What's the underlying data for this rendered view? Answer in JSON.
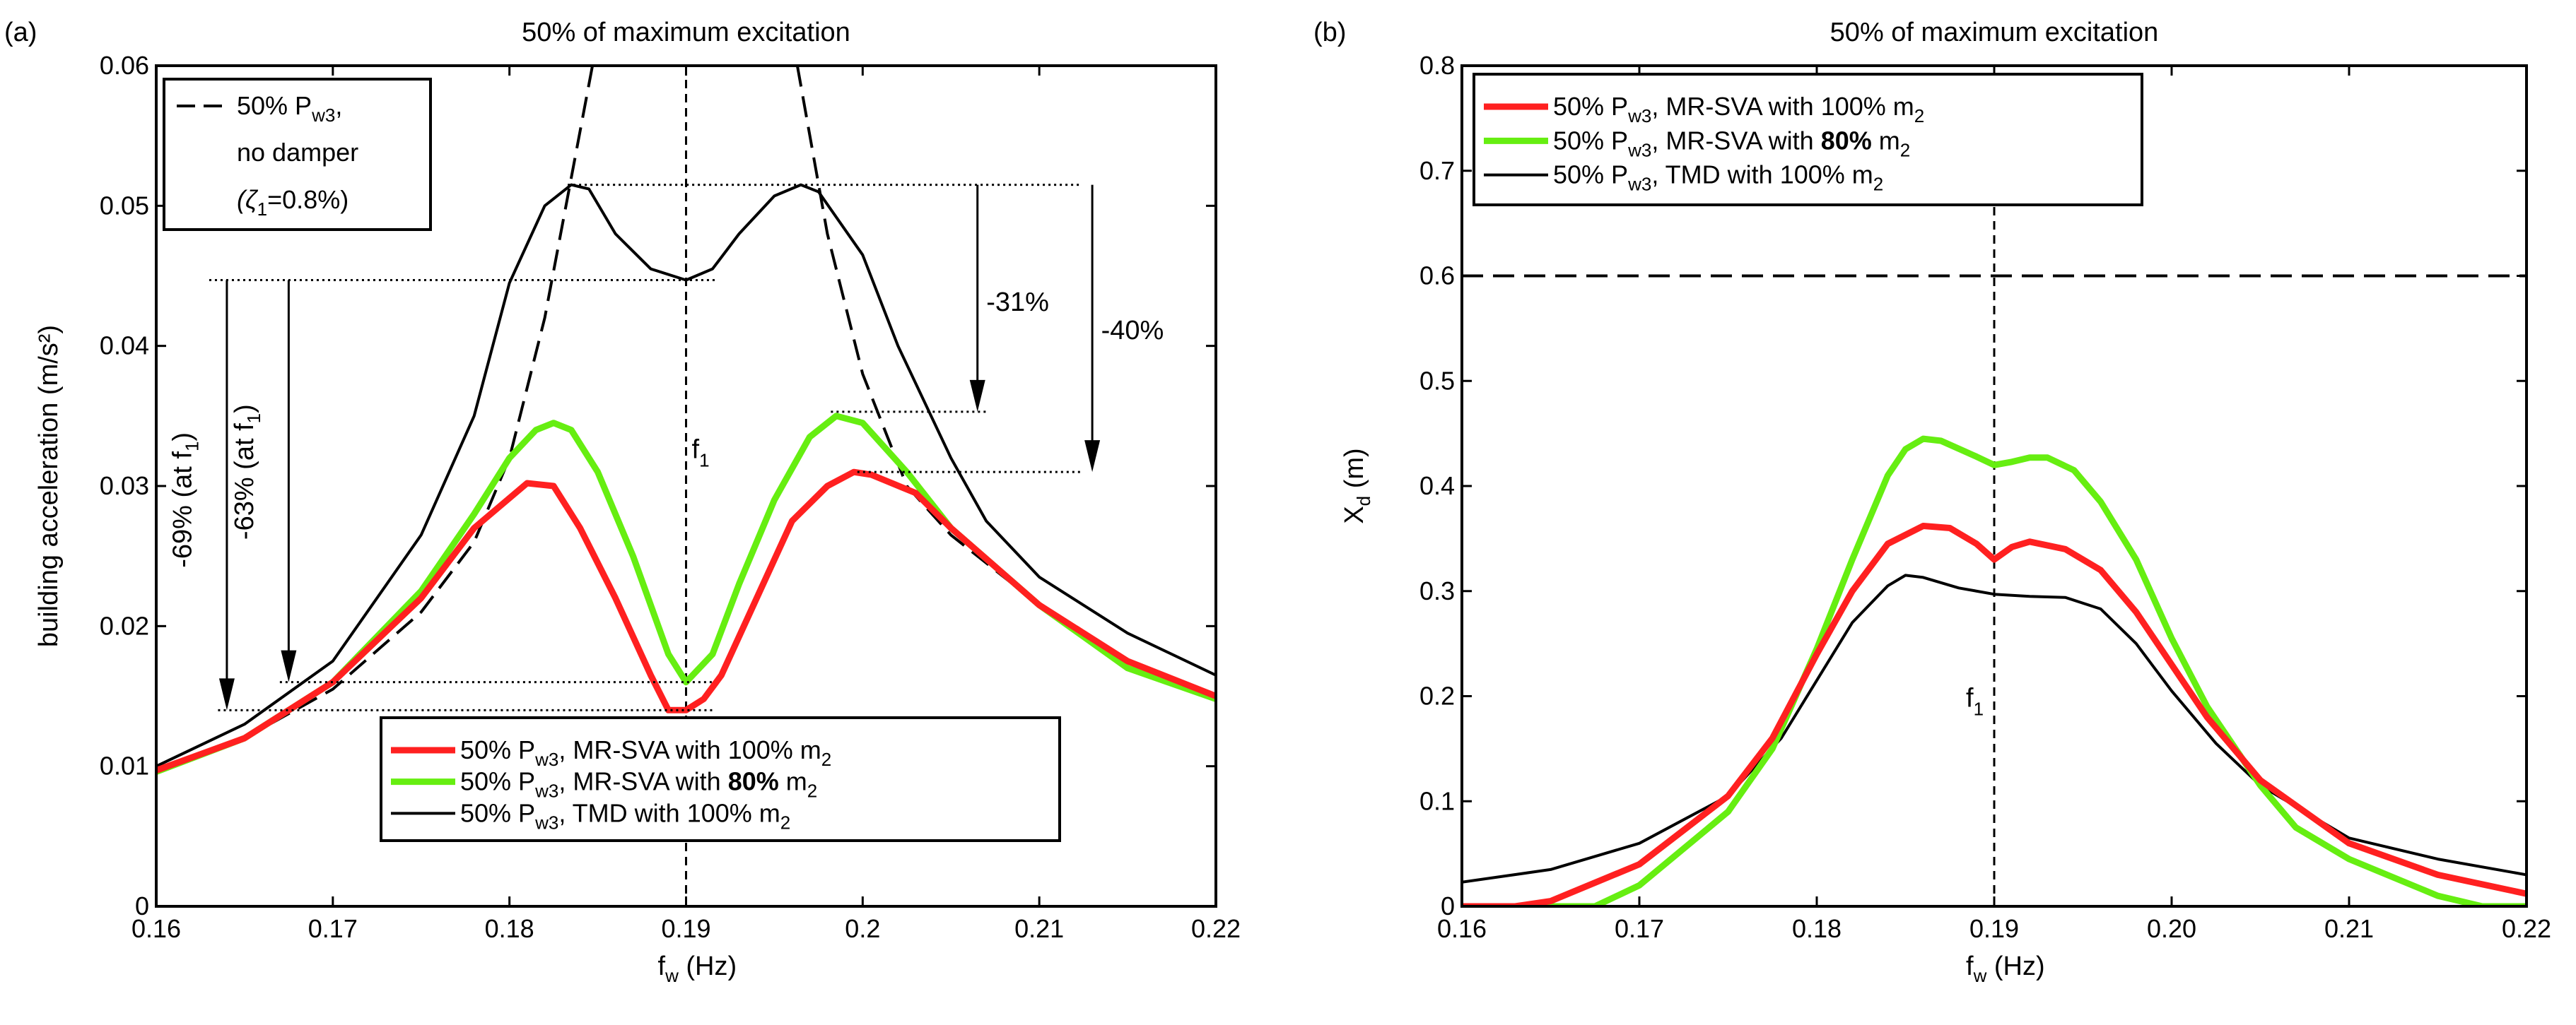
{
  "chart_data": [
    {
      "type": "line",
      "panel_label": "(a)",
      "title": "50% of maximum excitation",
      "xlabel": {
        "main": "f",
        "sub": "w",
        "rest": " (Hz)"
      },
      "ylabel": "building acceleration (m/s²)",
      "xlim": [
        0.16,
        0.22
      ],
      "ylim": [
        0,
        0.06
      ],
      "xticks": [
        0.16,
        0.17,
        0.18,
        0.19,
        0.2,
        0.21,
        0.22
      ],
      "xtick_labels": [
        "0.16",
        "0.17",
        "0.18",
        "0.19",
        "0.2",
        "0.21",
        "0.22"
      ],
      "yticks": [
        0,
        0.01,
        0.02,
        0.03,
        0.04,
        0.05,
        0.06
      ],
      "ytick_labels": [
        "0",
        "0.01",
        "0.02",
        "0.03",
        "0.04",
        "0.05",
        "0.06"
      ],
      "vline": {
        "x": 0.19,
        "label_main": "f",
        "label_sub": "1",
        "label_y": 0.032
      },
      "series": [
        {
          "name": "50% Pw3, no damper (ζ1=0.8%)",
          "color": "#000000",
          "style": "dashed",
          "width": 4,
          "segments": [
            [
              [
                0.16,
                0.0097
              ],
              [
                0.165,
                0.012
              ],
              [
                0.17,
                0.0155
              ],
              [
                0.175,
                0.021
              ],
              [
                0.178,
                0.026
              ],
              [
                0.18,
                0.032
              ],
              [
                0.182,
                0.042
              ],
              [
                0.1835,
                0.052
              ],
              [
                0.1847,
                0.06
              ]
            ],
            [
              [
                0.1963,
                0.06
              ],
              [
                0.198,
                0.048
              ],
              [
                0.2,
                0.038
              ],
              [
                0.2025,
                0.03
              ],
              [
                0.205,
                0.0265
              ],
              [
                0.21,
                0.0215
              ],
              [
                0.215,
                0.0175
              ],
              [
                0.22,
                0.015
              ]
            ]
          ]
        },
        {
          "name": "50% Pw3, TMD with 100% m2",
          "color": "#000000",
          "style": "solid",
          "width": 4,
          "points": [
            [
              0.16,
              0.01
            ],
            [
              0.165,
              0.013
            ],
            [
              0.17,
              0.0175
            ],
            [
              0.175,
              0.0265
            ],
            [
              0.178,
              0.035
            ],
            [
              0.18,
              0.0445
            ],
            [
              0.182,
              0.05
            ],
            [
              0.1835,
              0.0515
            ],
            [
              0.1845,
              0.0512
            ],
            [
              0.186,
              0.048
            ],
            [
              0.188,
              0.0455
            ],
            [
              0.19,
              0.0447
            ],
            [
              0.1915,
              0.0455
            ],
            [
              0.193,
              0.048
            ],
            [
              0.195,
              0.0507
            ],
            [
              0.1965,
              0.0515
            ],
            [
              0.1975,
              0.051
            ],
            [
              0.2,
              0.0465
            ],
            [
              0.202,
              0.04
            ],
            [
              0.205,
              0.032
            ],
            [
              0.207,
              0.0275
            ],
            [
              0.21,
              0.0235
            ],
            [
              0.215,
              0.0195
            ],
            [
              0.22,
              0.0165
            ]
          ]
        },
        {
          "name": "50% Pw3, MR-SVA with 80% m2",
          "color": "#66ee11",
          "style": "solid",
          "width": 9,
          "points": [
            [
              0.16,
              0.0096
            ],
            [
              0.165,
              0.012
            ],
            [
              0.17,
              0.016
            ],
            [
              0.175,
              0.0225
            ],
            [
              0.178,
              0.028
            ],
            [
              0.18,
              0.032
            ],
            [
              0.1815,
              0.034
            ],
            [
              0.1825,
              0.0345
            ],
            [
              0.1835,
              0.034
            ],
            [
              0.185,
              0.031
            ],
            [
              0.187,
              0.025
            ],
            [
              0.189,
              0.018
            ],
            [
              0.19,
              0.016
            ],
            [
              0.1915,
              0.018
            ],
            [
              0.193,
              0.023
            ],
            [
              0.195,
              0.029
            ],
            [
              0.197,
              0.0335
            ],
            [
              0.1985,
              0.035
            ],
            [
              0.2,
              0.0345
            ],
            [
              0.2025,
              0.031
            ],
            [
              0.205,
              0.027
            ],
            [
              0.21,
              0.0215
            ],
            [
              0.215,
              0.017
            ],
            [
              0.22,
              0.0148
            ]
          ]
        },
        {
          "name": "50% Pw3, MR-SVA with 100% m2",
          "color": "#ff2020",
          "style": "solid",
          "width": 9,
          "points": [
            [
              0.16,
              0.0097
            ],
            [
              0.165,
              0.012
            ],
            [
              0.17,
              0.016
            ],
            [
              0.175,
              0.022
            ],
            [
              0.178,
              0.027
            ],
            [
              0.181,
              0.0302
            ],
            [
              0.1825,
              0.03
            ],
            [
              0.184,
              0.027
            ],
            [
              0.186,
              0.022
            ],
            [
              0.188,
              0.0165
            ],
            [
              0.189,
              0.014
            ],
            [
              0.19,
              0.014
            ],
            [
              0.191,
              0.0148
            ],
            [
              0.192,
              0.0165
            ],
            [
              0.194,
              0.022
            ],
            [
              0.196,
              0.0275
            ],
            [
              0.198,
              0.03
            ],
            [
              0.1995,
              0.031
            ],
            [
              0.2005,
              0.0308
            ],
            [
              0.203,
              0.0295
            ],
            [
              0.205,
              0.027
            ],
            [
              0.21,
              0.0215
            ],
            [
              0.215,
              0.0175
            ],
            [
              0.22,
              0.015
            ]
          ]
        }
      ],
      "ref_lines": [
        {
          "y": 0.0515,
          "x": [
            0.1833,
            0.2123
          ]
        },
        {
          "y": 0.0447,
          "x": [
            0.163,
            0.1918
          ]
        },
        {
          "y": 0.0353,
          "x": [
            0.1982,
            0.207
          ]
        },
        {
          "y": 0.031,
          "x": [
            0.1997,
            0.2125
          ]
        },
        {
          "y": 0.016,
          "x": [
            0.167,
            0.1915
          ]
        },
        {
          "y": 0.014,
          "x": [
            0.1635,
            0.1915
          ]
        }
      ],
      "arrows": [
        {
          "x": 0.164,
          "from": 0.0447,
          "to": 0.014,
          "label": "-69% (at f",
          "label_sub": "1",
          "label_tail": ")",
          "rotated": true,
          "label_y": 0.029,
          "label_dx": -0.0025
        },
        {
          "x": 0.1675,
          "from": 0.0447,
          "to": 0.016,
          "label": "-63% (at f",
          "label_sub": "1",
          "label_tail": ")",
          "rotated": true,
          "label_y": 0.031,
          "label_dx": -0.0025
        },
        {
          "x": 0.2065,
          "from": 0.0515,
          "to": 0.0353,
          "label": "-31%",
          "rotated": false,
          "label_y": 0.0425,
          "label_dx": 0.0005
        },
        {
          "x": 0.213,
          "from": 0.0515,
          "to": 0.031,
          "label": "-40%",
          "rotated": false,
          "label_y": 0.0405,
          "label_dx": 0.0005
        }
      ],
      "legend_top": {
        "placement": "top-left",
        "line1": "50% P",
        "line1_sub": "w3",
        "line1_tail": ",",
        "line2": "no damper",
        "line3": "(ζ",
        "line3_sub": "1",
        "line3_tail": "=0.8%)"
      },
      "legend": {
        "placement": "bottom-center",
        "entries": [
          {
            "color": "#ff2020",
            "width": 9,
            "a": "50% P",
            "s1": "w3",
            "b": ", MR-SVA with ",
            "bold": "",
            "c": "100% m",
            "s2": "2"
          },
          {
            "color": "#66ee11",
            "width": 9,
            "a": "50% P",
            "s1": "w3",
            "b": ", MR-SVA with ",
            "bold": "80%",
            "c": " m",
            "s2": "2"
          },
          {
            "color": "#000000",
            "width": 4,
            "a": "50% P",
            "s1": "w3",
            "b": ", TMD with ",
            "bold": "",
            "c": "100% m",
            "s2": "2"
          }
        ]
      }
    },
    {
      "type": "line",
      "panel_label": "(b)",
      "title": "50% of maximum excitation",
      "xlabel": {
        "main": "f",
        "sub": "w",
        "rest": " (Hz)"
      },
      "ylabel": {
        "main": "X",
        "sub": "d",
        "rest": " (m)"
      },
      "xlim": [
        0.16,
        0.22
      ],
      "ylim": [
        0,
        0.8
      ],
      "xticks": [
        0.16,
        0.17,
        0.18,
        0.19,
        0.2,
        0.21,
        0.22
      ],
      "xtick_labels": [
        "0.16",
        "0.17",
        "0.18",
        "0.19",
        "0.20",
        "0.21",
        "0.22"
      ],
      "yticks": [
        0,
        0.1,
        0.2,
        0.3,
        0.4,
        0.5,
        0.6,
        0.7,
        0.8
      ],
      "ytick_labels": [
        "0",
        "0.1",
        "0.2",
        "0.3",
        "0.4",
        "0.5",
        "0.6",
        "0.7",
        "0.8"
      ],
      "vline": {
        "x": 0.19,
        "label_main": "f",
        "label_sub": "1",
        "label_y": 0.19
      },
      "hline": {
        "y": 0.6
      },
      "series": [
        {
          "name": "50% Pw3, TMD with 100% m2",
          "color": "#000000",
          "style": "solid",
          "width": 4,
          "points": [
            [
              0.16,
              0.023
            ],
            [
              0.165,
              0.035
            ],
            [
              0.17,
              0.06
            ],
            [
              0.175,
              0.105
            ],
            [
              0.178,
              0.16
            ],
            [
              0.18,
              0.215
            ],
            [
              0.182,
              0.27
            ],
            [
              0.184,
              0.305
            ],
            [
              0.185,
              0.315
            ],
            [
              0.186,
              0.313
            ],
            [
              0.188,
              0.303
            ],
            [
              0.19,
              0.297
            ],
            [
              0.192,
              0.295
            ],
            [
              0.194,
              0.294
            ],
            [
              0.196,
              0.283
            ],
            [
              0.198,
              0.25
            ],
            [
              0.2,
              0.205
            ],
            [
              0.2025,
              0.155
            ],
            [
              0.205,
              0.115
            ],
            [
              0.21,
              0.065
            ],
            [
              0.215,
              0.045
            ],
            [
              0.22,
              0.03
            ]
          ]
        },
        {
          "name": "50% Pw3, MR-SVA with 80% m2",
          "color": "#66ee11",
          "style": "solid",
          "width": 9,
          "points": [
            [
              0.16,
              0
            ],
            [
              0.1675,
              0
            ],
            [
              0.17,
              0.02
            ],
            [
              0.175,
              0.09
            ],
            [
              0.1775,
              0.15
            ],
            [
              0.18,
              0.245
            ],
            [
              0.182,
              0.33
            ],
            [
              0.184,
              0.41
            ],
            [
              0.185,
              0.435
            ],
            [
              0.186,
              0.445
            ],
            [
              0.187,
              0.443
            ],
            [
              0.189,
              0.428
            ],
            [
              0.19,
              0.42
            ],
            [
              0.191,
              0.423
            ],
            [
              0.192,
              0.427
            ],
            [
              0.193,
              0.427
            ],
            [
              0.1945,
              0.415
            ],
            [
              0.196,
              0.385
            ],
            [
              0.198,
              0.33
            ],
            [
              0.2,
              0.255
            ],
            [
              0.202,
              0.19
            ],
            [
              0.205,
              0.115
            ],
            [
              0.207,
              0.075
            ],
            [
              0.21,
              0.045
            ],
            [
              0.215,
              0.01
            ],
            [
              0.2175,
              0
            ],
            [
              0.22,
              0
            ]
          ]
        },
        {
          "name": "50% Pw3, MR-SVA with 100% m2",
          "color": "#ff2020",
          "style": "solid",
          "width": 9,
          "points": [
            [
              0.16,
              0
            ],
            [
              0.163,
              0
            ],
            [
              0.165,
              0.005
            ],
            [
              0.17,
              0.04
            ],
            [
              0.175,
              0.105
            ],
            [
              0.1775,
              0.16
            ],
            [
              0.18,
              0.24
            ],
            [
              0.182,
              0.3
            ],
            [
              0.184,
              0.345
            ],
            [
              0.186,
              0.362
            ],
            [
              0.1875,
              0.36
            ],
            [
              0.189,
              0.345
            ],
            [
              0.19,
              0.33
            ],
            [
              0.191,
              0.342
            ],
            [
              0.192,
              0.347
            ],
            [
              0.194,
              0.34
            ],
            [
              0.196,
              0.32
            ],
            [
              0.198,
              0.28
            ],
            [
              0.2,
              0.23
            ],
            [
              0.202,
              0.18
            ],
            [
              0.205,
              0.12
            ],
            [
              0.21,
              0.06
            ],
            [
              0.215,
              0.03
            ],
            [
              0.22,
              0.012
            ]
          ]
        }
      ],
      "legend": {
        "placement": "top-left",
        "entries": [
          {
            "color": "#ff2020",
            "width": 9,
            "a": "50% P",
            "s1": "w3",
            "b": ", MR-SVA with ",
            "bold": "",
            "c": "100% m",
            "s2": "2"
          },
          {
            "color": "#66ee11",
            "width": 9,
            "a": "50% P",
            "s1": "w3",
            "b": ", MR-SVA with ",
            "bold": "80%",
            "c": " m",
            "s2": "2"
          },
          {
            "color": "#000000",
            "width": 4,
            "a": "50% P",
            "s1": "w3",
            "b": ", TMD with ",
            "bold": "",
            "c": "100% m",
            "s2": "2"
          }
        ]
      }
    }
  ]
}
